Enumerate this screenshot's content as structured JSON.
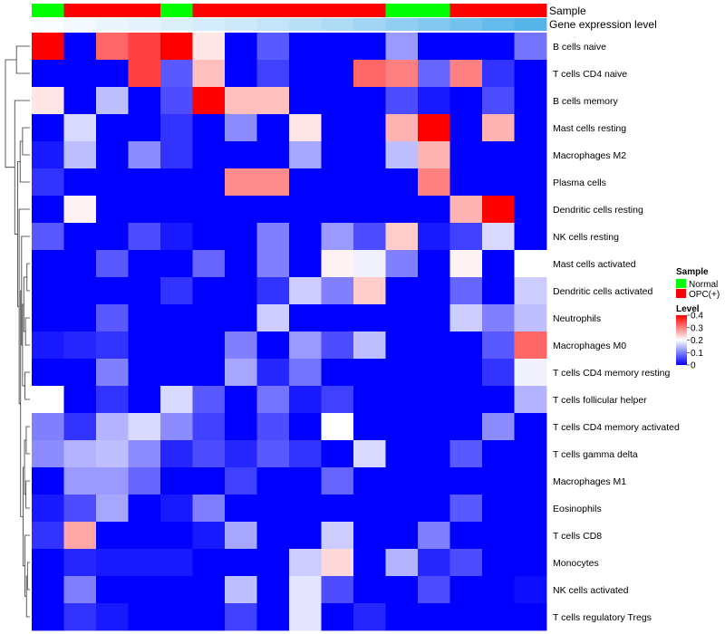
{
  "chart_data": {
    "type": "heatmap",
    "annotation_titles": {
      "sample": "Sample",
      "expression": "Gene expression level"
    },
    "sample_groups": [
      "Normal",
      "OPC(+)",
      "OPC(+)",
      "OPC(+)",
      "Normal",
      "OPC(+)",
      "OPC(+)",
      "OPC(+)",
      "OPC(+)",
      "OPC(+)",
      "OPC(+)",
      "Normal",
      "Normal",
      "OPC(+)",
      "OPC(+)",
      "OPC(+)"
    ],
    "expression_levels": [
      0.02,
      0.05,
      0.08,
      0.11,
      0.14,
      0.17,
      0.2,
      0.24,
      0.28,
      0.32,
      0.38,
      0.44,
      0.5,
      0.56,
      0.62,
      0.68
    ],
    "rows": [
      "B cells naive",
      "T cells CD4 naive",
      "B cells memory",
      "Mast cells resting",
      "Macrophages M2",
      "Plasma cells",
      "Dendritic cells resting",
      "NK cells resting",
      "Mast cells activated",
      "Dendritic cells activated",
      "Neutrophils",
      "Macrophages M0",
      "T cells CD4 memory resting",
      "T cells follicular helper",
      "T cells CD4 memory activated",
      "T cells gamma delta",
      "Macrophages M1",
      "Eosinophils",
      "T cells CD8",
      "Monocytes",
      "NK cells activated",
      "T cells regulatory  Tregs"
    ],
    "values": [
      [
        0.4,
        0.0,
        0.32,
        0.35,
        0.4,
        0.22,
        0.0,
        0.07,
        0.0,
        0.0,
        0.0,
        0.12,
        0.0,
        0.0,
        0.0,
        0.09
      ],
      [
        0.0,
        0.0,
        0.0,
        0.35,
        0.07,
        0.25,
        0.0,
        0.05,
        0.0,
        0.0,
        0.32,
        0.3,
        0.08,
        0.3,
        0.04,
        0.0
      ],
      [
        0.22,
        0.0,
        0.15,
        0.0,
        0.06,
        0.4,
        0.25,
        0.25,
        0.0,
        0.0,
        0.0,
        0.06,
        0.02,
        0.0,
        0.06,
        0.0
      ],
      [
        0.0,
        0.17,
        0.0,
        0.0,
        0.04,
        0.0,
        0.11,
        0.0,
        0.22,
        0.0,
        0.0,
        0.26,
        0.4,
        0.0,
        0.26,
        0.0
      ],
      [
        0.02,
        0.15,
        0.0,
        0.11,
        0.04,
        0.0,
        0.0,
        0.0,
        0.13,
        0.0,
        0.0,
        0.15,
        0.26,
        0.0,
        0.0,
        0.0
      ],
      [
        0.04,
        0.0,
        0.0,
        0.0,
        0.0,
        0.0,
        0.29,
        0.29,
        0.0,
        0.0,
        0.0,
        0.0,
        0.3,
        0.0,
        0.0,
        0.0
      ],
      [
        0.0,
        0.21,
        0.0,
        0.0,
        0.0,
        0.0,
        0.0,
        0.0,
        0.0,
        0.0,
        0.0,
        0.0,
        0.0,
        0.26,
        0.4,
        0.0
      ],
      [
        0.07,
        0.0,
        0.0,
        0.06,
        0.02,
        0.0,
        0.0,
        0.1,
        0.0,
        0.12,
        0.06,
        0.24,
        0.02,
        0.05,
        0.17,
        0.0
      ],
      [
        0.0,
        0.0,
        0.07,
        0.0,
        0.0,
        0.08,
        0.0,
        0.1,
        0.0,
        0.21,
        0.19,
        0.1,
        0.0,
        0.21,
        0.0,
        0.2
      ],
      [
        0.0,
        0.0,
        0.0,
        0.0,
        0.04,
        0.0,
        0.0,
        0.04,
        0.16,
        0.1,
        0.24,
        0.0,
        0.0,
        0.08,
        0.0,
        0.16
      ],
      [
        0.0,
        0.0,
        0.07,
        0.0,
        0.0,
        0.0,
        0.0,
        0.16,
        0.0,
        0.0,
        0.0,
        0.0,
        0.0,
        0.16,
        0.1,
        0.15
      ],
      [
        0.02,
        0.03,
        0.04,
        0.0,
        0.0,
        0.0,
        0.1,
        0.0,
        0.12,
        0.06,
        0.15,
        0.0,
        0.0,
        0.0,
        0.07,
        0.32
      ],
      [
        0.0,
        0.0,
        0.1,
        0.0,
        0.0,
        0.0,
        0.13,
        0.03,
        0.09,
        0.0,
        0.0,
        0.0,
        0.0,
        0.0,
        0.04,
        0.19
      ],
      [
        0.2,
        0.0,
        0.04,
        0.0,
        0.17,
        0.07,
        0.0,
        0.09,
        0.02,
        0.05,
        0.0,
        0.0,
        0.0,
        0.0,
        0.0,
        0.14
      ],
      [
        0.1,
        0.04,
        0.14,
        0.17,
        0.11,
        0.05,
        0.0,
        0.06,
        0.0,
        0.2,
        0.0,
        0.0,
        0.0,
        0.0,
        0.11,
        0.0
      ],
      [
        0.11,
        0.14,
        0.15,
        0.11,
        0.03,
        0.06,
        0.03,
        0.07,
        0.04,
        0.0,
        0.17,
        0.0,
        0.0,
        0.07,
        0.0,
        0.0
      ],
      [
        0.0,
        0.12,
        0.12,
        0.08,
        0.0,
        0.0,
        0.05,
        0.0,
        0.0,
        0.08,
        0.0,
        0.0,
        0.0,
        0.0,
        0.0,
        0.0
      ],
      [
        0.02,
        0.06,
        0.13,
        0.0,
        0.02,
        0.1,
        0.0,
        0.0,
        0.0,
        0.0,
        0.0,
        0.0,
        0.0,
        0.07,
        0.0,
        0.0
      ],
      [
        0.04,
        0.27,
        0.0,
        0.0,
        0.0,
        0.02,
        0.13,
        0.0,
        0.0,
        0.16,
        0.0,
        0.0,
        0.1,
        0.0,
        0.0,
        0.0
      ],
      [
        0.0,
        0.03,
        0.02,
        0.02,
        0.02,
        0.0,
        0.0,
        0.0,
        0.16,
        0.23,
        0.0,
        0.14,
        0.03,
        0.06,
        0.0,
        0.0
      ],
      [
        0.0,
        0.1,
        0.0,
        0.0,
        0.0,
        0.0,
        0.15,
        0.0,
        0.18,
        0.06,
        0.0,
        0.0,
        0.06,
        0.0,
        0.0,
        0.01
      ],
      [
        0.0,
        0.04,
        0.02,
        0.0,
        0.0,
        0.0,
        0.05,
        0.0,
        0.18,
        0.0,
        0.03,
        0.0,
        0.0,
        0.0,
        0.0,
        0.0
      ]
    ],
    "color_scale": {
      "low": "#0000ff",
      "mid": "#ffffff",
      "high": "#ff0000",
      "domain": [
        0,
        0.2,
        0.4
      ]
    },
    "legend": {
      "placement": "right",
      "sample_title": "Sample",
      "sample_items": [
        {
          "label": "Normal",
          "color": "#00ff00"
        },
        {
          "label": "OPC(+)",
          "color": "#ff0000"
        }
      ],
      "level_title": "Level",
      "level_ticks": [
        "0.4",
        "0.3",
        "0.2",
        "0.1",
        "0"
      ]
    },
    "expression_colors": {
      "low": "#ffffff",
      "high": "#56b4e9"
    },
    "row_dendrogram": true
  }
}
